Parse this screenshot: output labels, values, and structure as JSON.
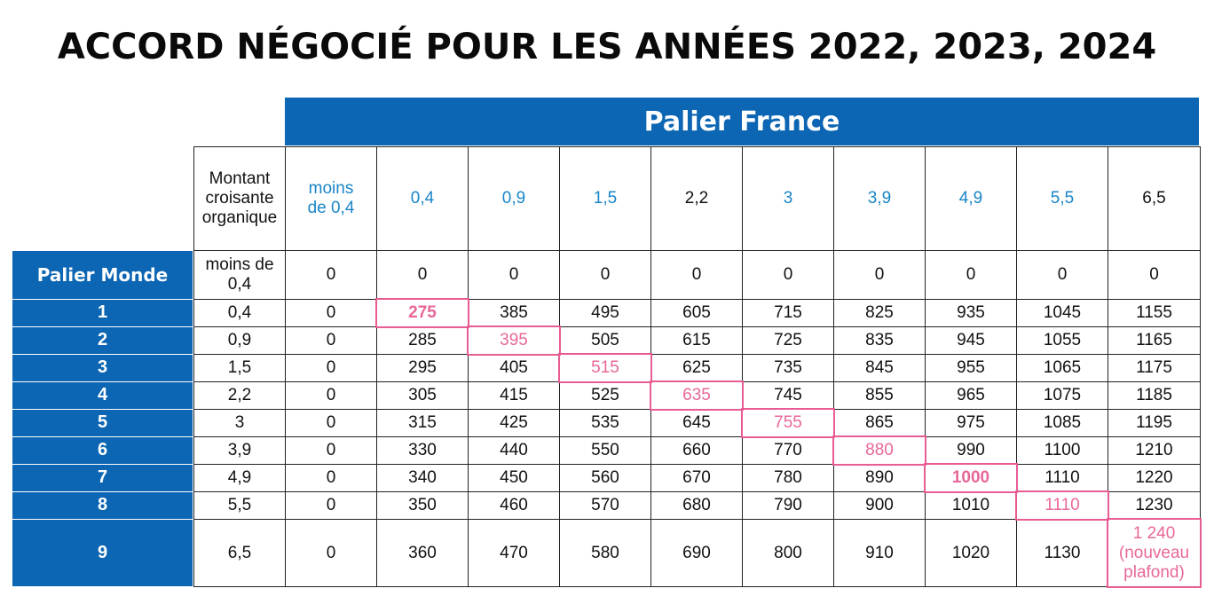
{
  "title": "ACCORD NÉGOCIÉ POUR LES ANNÉES 2022, 2023, 2024",
  "france_header": "Palier France",
  "world_header": "Palier Monde",
  "corner_label_lines": [
    "Montant",
    "croisante",
    "organique"
  ],
  "france_columns": [
    {
      "lines": [
        "moins",
        "de 0,4"
      ],
      "blue": true
    },
    {
      "lines": [
        "0,4"
      ],
      "blue": true
    },
    {
      "lines": [
        "0,9"
      ],
      "blue": true
    },
    {
      "lines": [
        "1,5"
      ],
      "blue": true
    },
    {
      "lines": [
        "2,2"
      ],
      "blue": false
    },
    {
      "lines": [
        "3"
      ],
      "blue": true
    },
    {
      "lines": [
        "3,9"
      ],
      "blue": true
    },
    {
      "lines": [
        "4,9"
      ],
      "blue": true
    },
    {
      "lines": [
        "5,5"
      ],
      "blue": true
    },
    {
      "lines": [
        "6,5"
      ],
      "blue": false
    }
  ],
  "rows": [
    {
      "palier": "",
      "world": [
        "moins de",
        "0,4"
      ],
      "values": [
        "0",
        "0",
        "0",
        "0",
        "0",
        "0",
        "0",
        "0",
        "0",
        "0"
      ]
    },
    {
      "palier": "1",
      "world": [
        "0,4"
      ],
      "values": [
        "0",
        "275",
        "385",
        "495",
        "605",
        "715",
        "825",
        "935",
        "1045",
        "1155"
      ]
    },
    {
      "palier": "2",
      "world": [
        "0,9"
      ],
      "values": [
        "0",
        "285",
        "395",
        "505",
        "615",
        "725",
        "835",
        "945",
        "1055",
        "1165"
      ]
    },
    {
      "palier": "3",
      "world": [
        "1,5"
      ],
      "values": [
        "0",
        "295",
        "405",
        "515",
        "625",
        "735",
        "845",
        "955",
        "1065",
        "1175"
      ]
    },
    {
      "palier": "4",
      "world": [
        "2,2"
      ],
      "values": [
        "0",
        "305",
        "415",
        "525",
        "635",
        "745",
        "855",
        "965",
        "1075",
        "1185"
      ]
    },
    {
      "palier": "5",
      "world": [
        "3"
      ],
      "values": [
        "0",
        "315",
        "425",
        "535",
        "645",
        "755",
        "865",
        "975",
        "1085",
        "1195"
      ]
    },
    {
      "palier": "6",
      "world": [
        "3,9"
      ],
      "values": [
        "0",
        "330",
        "440",
        "550",
        "660",
        "770",
        "880",
        "990",
        "1100",
        "1210"
      ]
    },
    {
      "palier": "7",
      "world": [
        "4,9"
      ],
      "values": [
        "0",
        "340",
        "450",
        "560",
        "670",
        "780",
        "890",
        "1000",
        "1110",
        "1220"
      ]
    },
    {
      "palier": "8",
      "world": [
        "5,5"
      ],
      "values": [
        "0",
        "350",
        "460",
        "570",
        "680",
        "790",
        "900",
        "1010",
        "1110",
        "1230"
      ]
    },
    {
      "palier": "9",
      "world": [
        "6,5"
      ],
      "values": [
        "0",
        "360",
        "470",
        "580",
        "690",
        "800",
        "910",
        "1020",
        "1130",
        "1 240\n(nouveau\nplafond)"
      ]
    }
  ],
  "highlight_color": "#e85c93",
  "accent_color": "#0c66b3",
  "column_label_blue": "#1a86c8"
}
